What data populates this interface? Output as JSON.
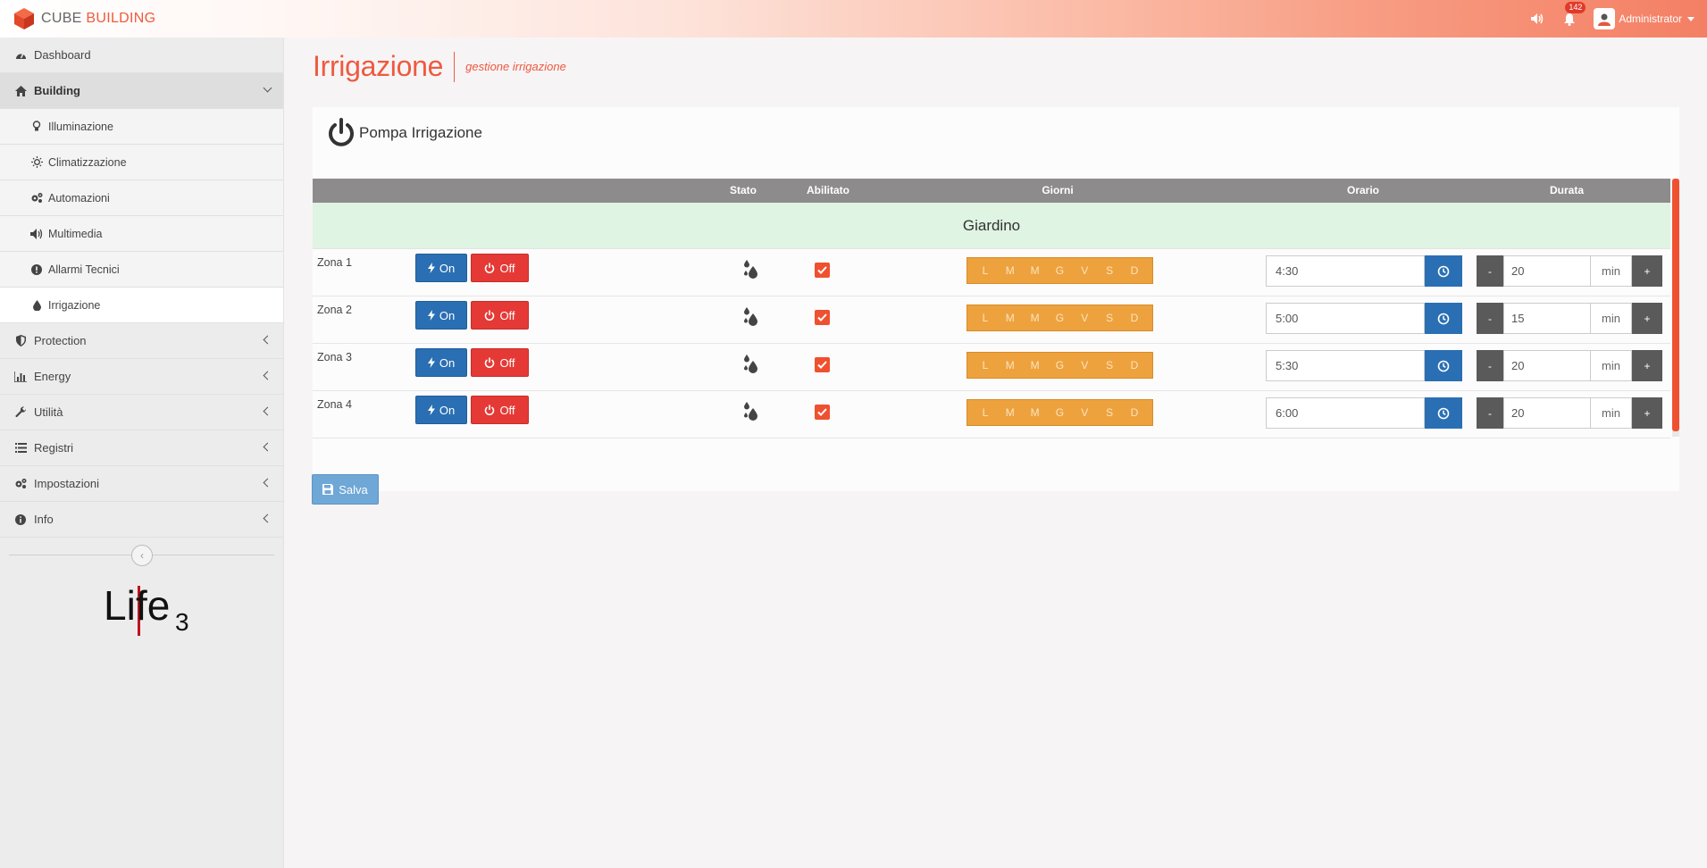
{
  "header": {
    "logo_part1": "CUBE",
    "logo_part2": "BUILDING",
    "notification_count": "142",
    "user_name": "Administrator"
  },
  "sidebar": {
    "items": [
      {
        "label": "Dashboard",
        "icon": "dashboard-icon"
      },
      {
        "label": "Building",
        "icon": "home-icon",
        "expanded": true
      },
      {
        "label": "Protection",
        "icon": "shield-icon"
      },
      {
        "label": "Energy",
        "icon": "bar-chart-icon"
      },
      {
        "label": "Utilità",
        "icon": "wrench-icon"
      },
      {
        "label": "Registri",
        "icon": "list-icon"
      },
      {
        "label": "Impostazioni",
        "icon": "gears-icon"
      },
      {
        "label": "Info",
        "icon": "info-icon"
      }
    ],
    "building_sub": [
      {
        "label": "Illuminazione",
        "icon": "lightbulb-icon"
      },
      {
        "label": "Climatizzazione",
        "icon": "sun-icon"
      },
      {
        "label": "Automazioni",
        "icon": "gears-icon"
      },
      {
        "label": "Multimedia",
        "icon": "speaker-icon"
      },
      {
        "label": "Allarmi Tecnici",
        "icon": "alert-icon"
      },
      {
        "label": "Irrigazione",
        "icon": "drop-icon",
        "current": true
      }
    ],
    "footer_logo": "Life3"
  },
  "page": {
    "title": "Irrigazione",
    "subtitle": "gestione irrigazione"
  },
  "panel": {
    "title": "Pompa Irrigazione",
    "columns": {
      "stato": "Stato",
      "abilitato": "Abilitato",
      "giorni": "Giorni",
      "orario": "Orario",
      "durata": "Durata"
    },
    "group": "Giardino",
    "on_label": "On",
    "off_label": "Off",
    "unit": "min",
    "minus": "-",
    "plus": "+",
    "days": [
      "L",
      "M",
      "M",
      "G",
      "V",
      "S",
      "D"
    ],
    "zones": [
      {
        "name": "Zona 1",
        "enabled": true,
        "time": "4:30",
        "duration": "20"
      },
      {
        "name": "Zona 2",
        "enabled": true,
        "time": "5:00",
        "duration": "15"
      },
      {
        "name": "Zona 3",
        "enabled": true,
        "time": "5:30",
        "duration": "20"
      },
      {
        "name": "Zona 4",
        "enabled": true,
        "time": "6:00",
        "duration": "20"
      }
    ]
  },
  "save_label": "Salva",
  "colors": {
    "accent": "#ee5a3f",
    "primary": "#2a6fb3",
    "danger": "#e53935",
    "days": "#eda23e",
    "group_bg": "#dff4e2"
  }
}
